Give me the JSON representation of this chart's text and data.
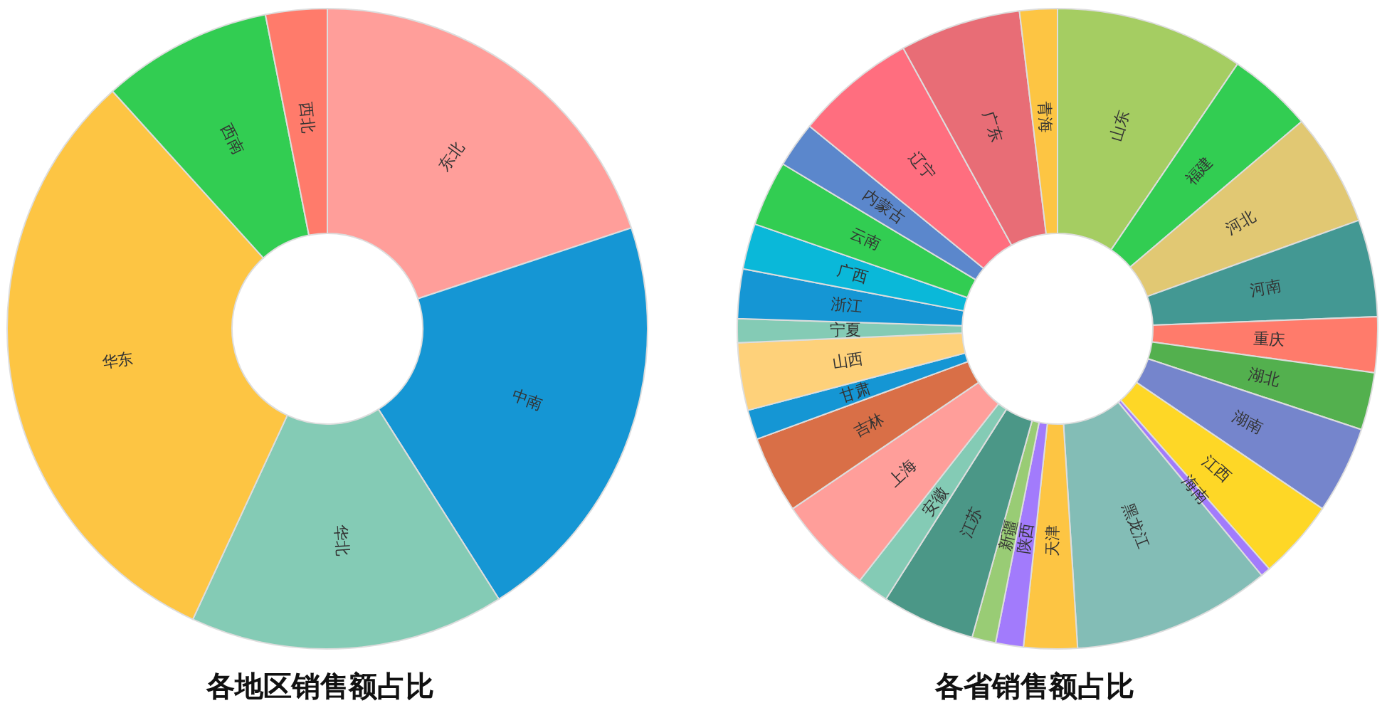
{
  "chart_data": [
    {
      "type": "donut",
      "title": "各地区销售额占比",
      "categories": [
        "东北",
        "中南",
        "华北",
        "华东",
        "西南",
        "西北"
      ],
      "values": [
        19.9,
        21.1,
        15.9,
        31.4,
        8.6,
        3.1
      ],
      "colors": [
        "#ff9e9a",
        "#1596d4",
        "#84cbb5",
        "#fdc543",
        "#32cd52",
        "#ff7b6b"
      ]
    },
    {
      "type": "donut",
      "title": "各省销售额占比",
      "categories": [
        "山东",
        "福建",
        "河北",
        "河南",
        "重庆",
        "湖北",
        "湖南",
        "江西",
        "海南",
        "黑龙江",
        "天津",
        "陕西",
        "新疆",
        "江苏",
        "安徽",
        "上海",
        "吉林",
        "甘肃",
        "山西",
        "宁夏",
        "浙江",
        "广西",
        "云南",
        "内蒙古",
        "辽宁",
        "广东",
        "青海"
      ],
      "values": [
        9.5,
        4.3,
        5.7,
        4.9,
        2.8,
        2.9,
        4.4,
        4.0,
        0.5,
        10.0,
        2.7,
        1.4,
        1.2,
        4.7,
        1.6,
        4.9,
        3.9,
        1.5,
        3.4,
        1.2,
        2.5,
        2.3,
        3.3,
        2.3,
        6.1,
        6.1,
        1.9
      ],
      "colors": [
        "#a5cd62",
        "#32cd52",
        "#e1c873",
        "#439893",
        "#ff7b6b",
        "#53b04e",
        "#7585cc",
        "#fed726",
        "#a27bfc",
        "#83bdb6",
        "#fdc543",
        "#a27bfc",
        "#99cc75",
        "#4b9787",
        "#84cbb5",
        "#ff9e9a",
        "#d96f47",
        "#1596d4",
        "#fed17a",
        "#84cbb5",
        "#1596d4",
        "#0ab8d9",
        "#32cd52",
        "#5b87cc",
        "#ff6e7f",
        "#e86d76",
        "#fdc543"
      ]
    }
  ]
}
